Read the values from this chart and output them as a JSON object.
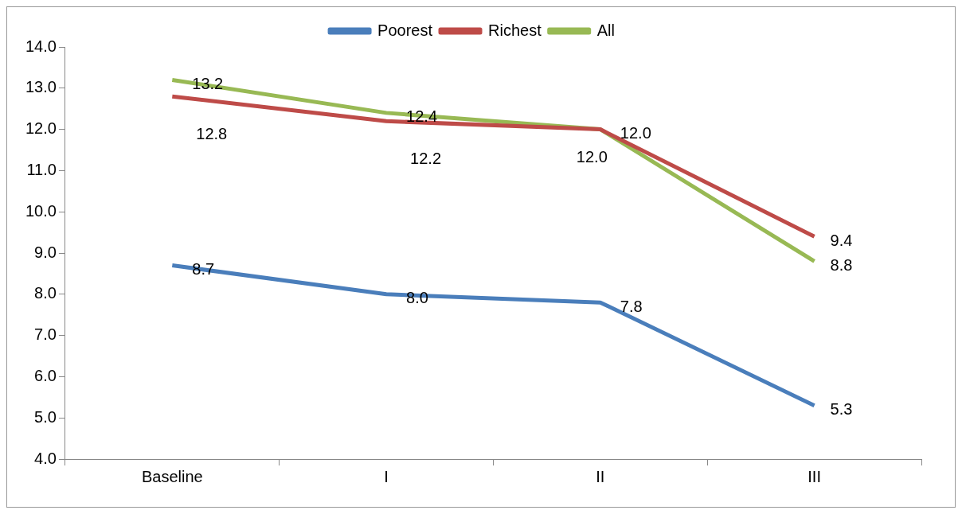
{
  "chart_data": {
    "type": "line",
    "categories": [
      "Baseline",
      "I",
      "II",
      "III"
    ],
    "series": [
      {
        "name": "Poorest",
        "color": "#4a7ebb",
        "values": [
          8.7,
          8.0,
          7.8,
          5.3
        ],
        "value_labels": [
          "8.7",
          "8.0",
          "7.8",
          "5.3"
        ]
      },
      {
        "name": "Richest",
        "color": "#be4b48",
        "values": [
          12.8,
          12.2,
          12.0,
          9.4
        ],
        "value_labels": [
          "12.8",
          "12.2",
          "12.0",
          "9.4"
        ]
      },
      {
        "name": "All",
        "color": "#98b954",
        "values": [
          13.2,
          12.4,
          12.0,
          8.8
        ],
        "value_labels": [
          "13.2",
          "12.4",
          "12.0",
          "8.8"
        ]
      }
    ],
    "ylim": [
      4,
      14
    ],
    "yticks": [
      {
        "value": 4,
        "label": "4.0"
      },
      {
        "value": 5,
        "label": "5.0"
      },
      {
        "value": 6,
        "label": "6.0"
      },
      {
        "value": 7,
        "label": "7.0"
      },
      {
        "value": 8,
        "label": "8.0"
      },
      {
        "value": 9,
        "label": "9.0"
      },
      {
        "value": 10,
        "label": "10.0"
      },
      {
        "value": 11,
        "label": "11.0"
      },
      {
        "value": 12,
        "label": "12.0"
      },
      {
        "value": 13,
        "label": "13.0"
      },
      {
        "value": 14,
        "label": "14.0"
      }
    ],
    "grid": false,
    "legend": "top",
    "marker": "none",
    "line_style": "solid"
  }
}
